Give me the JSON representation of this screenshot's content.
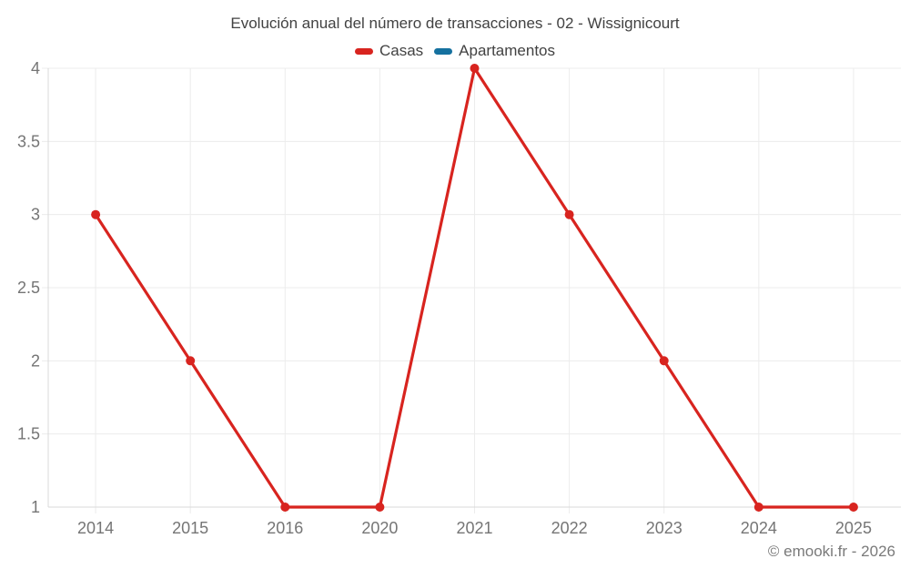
{
  "chart_data": {
    "type": "line",
    "title": "Evolución anual del número de transacciones - 02 - Wissignicourt",
    "categories": [
      "2014",
      "2015",
      "2016",
      "2020",
      "2021",
      "2022",
      "2023",
      "2024",
      "2025"
    ],
    "series": [
      {
        "name": "Casas",
        "color": "#d8241f",
        "values": [
          3,
          2,
          1,
          1,
          4,
          3,
          2,
          1,
          1
        ]
      },
      {
        "name": "Apartamentos",
        "color": "#15719f",
        "values": []
      }
    ],
    "xlabel": "",
    "ylabel": "",
    "ylim": [
      1,
      4
    ],
    "yticks": [
      1,
      1.5,
      2,
      2.5,
      3,
      3.5,
      4
    ],
    "grid": true,
    "legend_position": "top",
    "marker": "circle"
  },
  "footer": "© emooki.fr - 2026",
  "colors": {
    "background": "#ffffff",
    "grid": "#ececec",
    "axis": "#d9d9d9",
    "tick_label": "#757575",
    "title_text": "#424242",
    "footer_text": "#7a7a7a"
  }
}
